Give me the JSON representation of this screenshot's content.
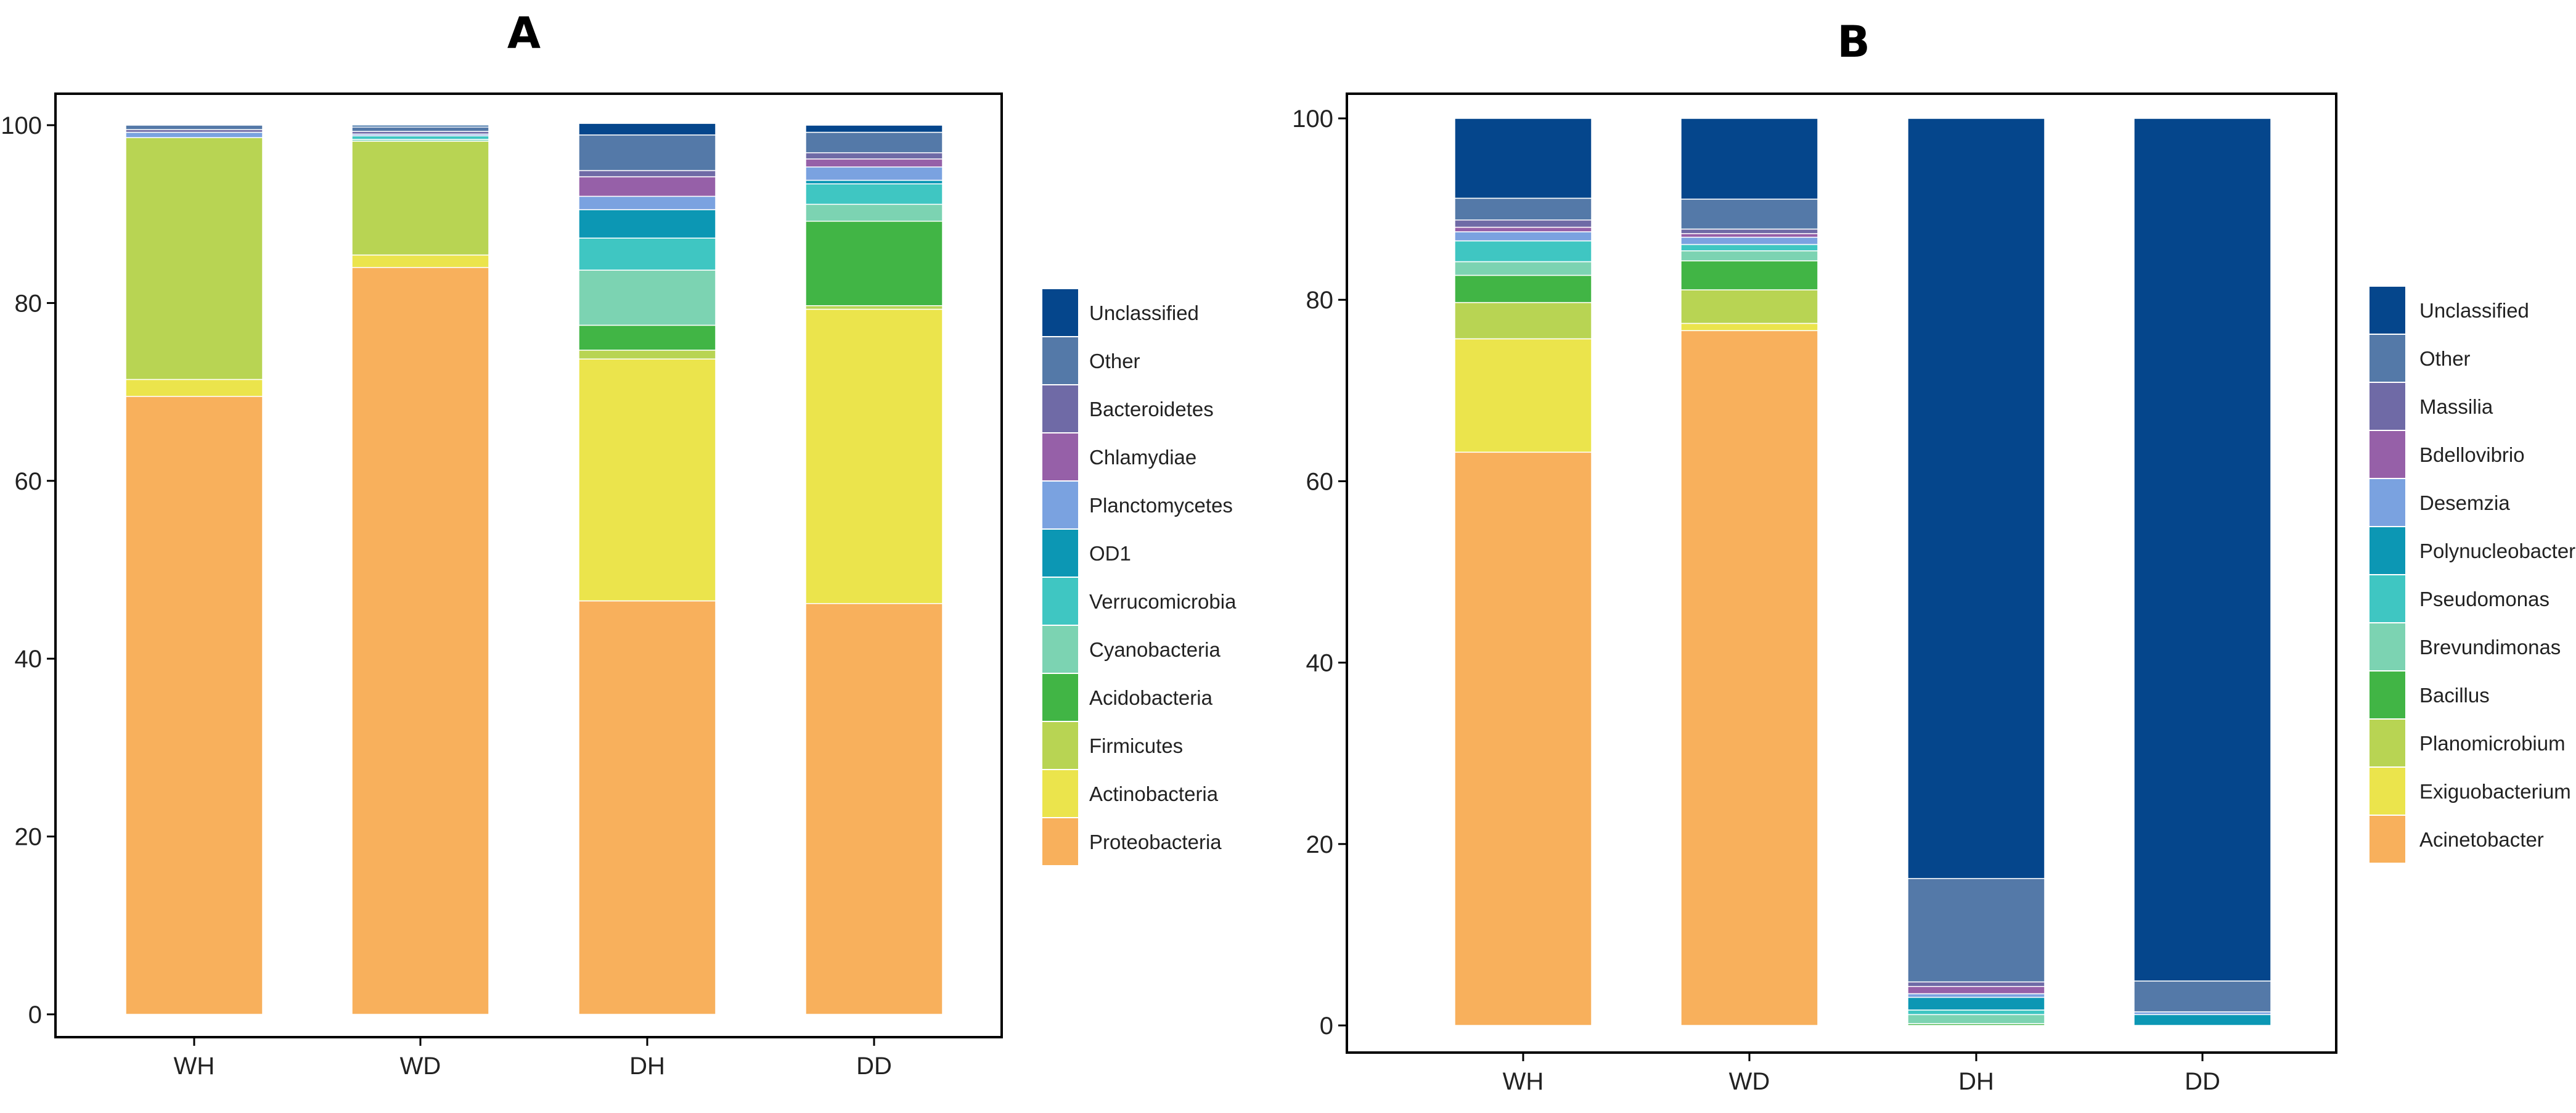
{
  "colors": {
    "Unclassified": "#05468c",
    "Other": "#5479a8",
    "Slot10": "#6f6aa6",
    "Slot9": "#9660a8",
    "Slot8": "#7aa2e0",
    "Slot7": "#0c97b4",
    "Slot6": "#3fc6c2",
    "Slot5": "#7cd3b2",
    "Slot4": "#41b545",
    "Slot3": "#b8d453",
    "Slot2": "#ebe44c",
    "Slot1": "#f8b05c"
  },
  "chart_data": [
    {
      "type": "bar",
      "stacked": true,
      "title": "A",
      "categories": [
        "WH",
        "WD",
        "DH",
        "DD"
      ],
      "ylim": [
        0,
        100
      ],
      "yticks": [
        0,
        20,
        40,
        60,
        80,
        100
      ],
      "xlabel": "",
      "ylabel": "",
      "legend_position": "right",
      "series": [
        {
          "name": "Proteobacteria",
          "color_key": "Slot1",
          "values": [
            69.5,
            84.0,
            46.5,
            46.2
          ]
        },
        {
          "name": "Actinobacteria",
          "color_key": "Slot2",
          "values": [
            1.9,
            1.4,
            27.2,
            33.1
          ]
        },
        {
          "name": "Firmicutes",
          "color_key": "Slot3",
          "values": [
            27.2,
            12.8,
            1.0,
            0.4
          ]
        },
        {
          "name": "Acidobacteria",
          "color_key": "Slot4",
          "values": [
            0.0,
            0.0,
            2.8,
            9.5
          ]
        },
        {
          "name": "Cyanobacteria",
          "color_key": "Slot5",
          "values": [
            0.0,
            0.2,
            6.2,
            1.9
          ]
        },
        {
          "name": "Verrucomicrobia",
          "color_key": "Slot6",
          "values": [
            0.0,
            0.4,
            3.6,
            2.3
          ]
        },
        {
          "name": "OD1",
          "color_key": "Slot7",
          "values": [
            0.0,
            0.0,
            3.2,
            0.4
          ]
        },
        {
          "name": "Planctomycetes",
          "color_key": "Slot8",
          "values": [
            0.6,
            0.2,
            1.5,
            1.5
          ]
        },
        {
          "name": "Chlamydiae",
          "color_key": "Slot9",
          "values": [
            0.0,
            0.0,
            2.2,
            0.9
          ]
        },
        {
          "name": "Bacteroidetes",
          "color_key": "Slot10",
          "values": [
            0.3,
            0.3,
            0.7,
            0.7
          ]
        },
        {
          "name": "Other",
          "color_key": "Other",
          "values": [
            0.5,
            0.5,
            4.0,
            2.3
          ]
        },
        {
          "name": "Unclassified",
          "color_key": "Unclassified",
          "values": [
            0.0,
            0.2,
            1.3,
            0.8
          ]
        }
      ]
    },
    {
      "type": "bar",
      "stacked": true,
      "title": "B",
      "categories": [
        "WH",
        "WD",
        "DH",
        "DD"
      ],
      "ylim": [
        0,
        100
      ],
      "yticks": [
        0,
        20,
        40,
        60,
        80,
        100
      ],
      "xlabel": "",
      "ylabel": "",
      "legend_position": "right",
      "series": [
        {
          "name": "Acinetobacter",
          "color_key": "Slot1",
          "values": [
            63.2,
            76.6,
            0.0,
            0.0
          ]
        },
        {
          "name": "Exiguobacterium",
          "color_key": "Slot2",
          "values": [
            12.5,
            0.8,
            0.0,
            0.0
          ]
        },
        {
          "name": "Planomicrobium",
          "color_key": "Slot3",
          "values": [
            4.0,
            3.7,
            0.0,
            0.0
          ]
        },
        {
          "name": "Bacillus",
          "color_key": "Slot4",
          "values": [
            3.0,
            3.2,
            0.2,
            0.0
          ]
        },
        {
          "name": "Brevundimonas",
          "color_key": "Slot5",
          "values": [
            1.5,
            1.1,
            1.0,
            0.0
          ]
        },
        {
          "name": "Pseudomonas",
          "color_key": "Slot6",
          "values": [
            2.3,
            0.7,
            0.5,
            0.0
          ]
        },
        {
          "name": "Polynucleobacter",
          "color_key": "Slot7",
          "values": [
            0.0,
            0.0,
            1.4,
            1.2
          ]
        },
        {
          "name": "Desemzia",
          "color_key": "Slot8",
          "values": [
            1.0,
            0.8,
            0.4,
            0.3
          ]
        },
        {
          "name": "Bdellovibrio",
          "color_key": "Slot9",
          "values": [
            0.5,
            0.4,
            0.8,
            0.0
          ]
        },
        {
          "name": "Massilia",
          "color_key": "Slot10",
          "values": [
            0.8,
            0.5,
            0.5,
            0.0
          ]
        },
        {
          "name": "Other",
          "color_key": "Other",
          "values": [
            2.4,
            3.3,
            11.4,
            3.4
          ]
        },
        {
          "name": "Unclassified",
          "color_key": "Unclassified",
          "values": [
            8.8,
            8.9,
            83.8,
            95.1
          ]
        }
      ]
    }
  ]
}
